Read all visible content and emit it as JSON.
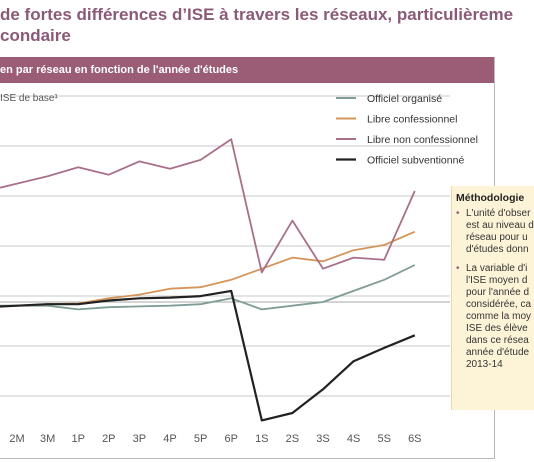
{
  "title_lines": [
    "de fortes différences d’ISE à travers les réseaux, particulièreme",
    "condaire"
  ],
  "panel_title": "en par réseau en fonction de l'année d'études",
  "methodology": {
    "title": "Méthodologie",
    "items": [
      {
        "lines": [
          "L'unité d'obser",
          "est au niveau d",
          "réseau pour u",
          "d'études donn"
        ]
      },
      {
        "lines": [
          "La variable d'i",
          "l'ISE moyen d",
          "pour l'année d",
          "considérée, ca",
          "comme la moy",
          "ISE des élève",
          "dans ce résea",
          "année d'étude",
          "2013-14"
        ]
      }
    ]
  },
  "colors": {
    "title": "#8b5a78",
    "header": "#9b5c75",
    "grid": "#c9c9c9",
    "axis_text": "#555555",
    "methodology_bg": "#fdf4d8"
  },
  "chart_data": {
    "type": "line",
    "ylabel": "ISE de base¹",
    "categories": [
      "2M",
      "3M",
      "1P",
      "2P",
      "3P",
      "4P",
      "5P",
      "6P",
      "1S",
      "2S",
      "3S",
      "4S",
      "5S",
      "6S"
    ],
    "series": [
      {
        "name": "Officiel organisé",
        "color": "#7f9c97",
        "values": [
          -0.05,
          -0.05,
          -0.1,
          -0.07,
          -0.06,
          -0.05,
          -0.03,
          0.05,
          -0.1,
          -0.05,
          0.0,
          0.15,
          0.3,
          0.5
        ]
      },
      {
        "name": "Libre confessionnel",
        "color": "#d4955a",
        "values": [
          -0.05,
          -0.03,
          -0.02,
          0.05,
          0.1,
          0.18,
          0.2,
          0.3,
          0.45,
          0.6,
          0.55,
          0.7,
          0.77,
          0.95
        ]
      },
      {
        "name": "Libre non confessionnel",
        "color": "#a9708a",
        "values": [
          1.6,
          1.7,
          1.82,
          1.72,
          1.9,
          1.8,
          1.92,
          2.2,
          0.4,
          1.1,
          0.45,
          0.6,
          0.57,
          1.5
        ]
      },
      {
        "name": "Officiel subventionné",
        "color": "#222222",
        "values": [
          -0.05,
          -0.03,
          -0.03,
          0.02,
          0.05,
          0.06,
          0.08,
          0.15,
          -1.6,
          -1.5,
          -1.18,
          -0.8,
          -0.62,
          -0.45
        ]
      }
    ],
    "grid": true,
    "legend": "top-right"
  }
}
